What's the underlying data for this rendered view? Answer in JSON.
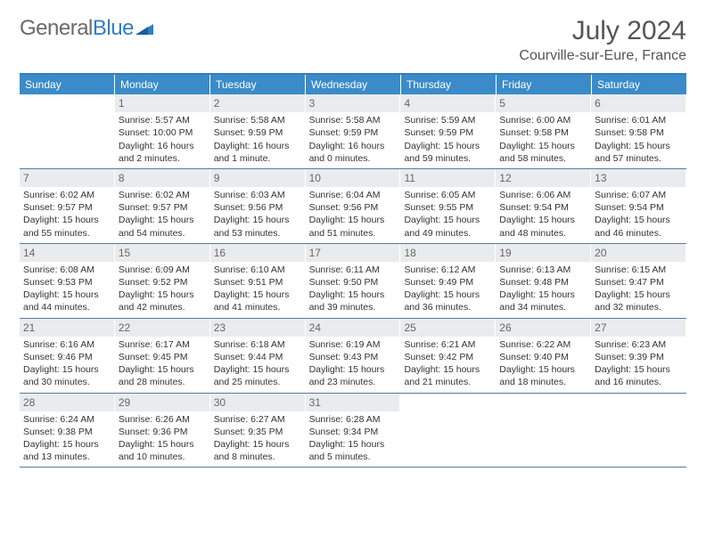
{
  "logo": {
    "part1": "General",
    "part2": "Blue"
  },
  "title": "July 2024",
  "location": "Courville-sur-Eure, France",
  "colors": {
    "header_bg": "#3b8bc9",
    "header_border_top": "#2f7ec2",
    "row_border": "#5b7a9a",
    "daynum_bg": "#e9ecef",
    "text": "#333333",
    "logo_gray": "#6a6a6a",
    "logo_blue": "#2f7ec2"
  },
  "day_headers": [
    "Sunday",
    "Monday",
    "Tuesday",
    "Wednesday",
    "Thursday",
    "Friday",
    "Saturday"
  ],
  "weeks": [
    [
      {
        "num": "",
        "sunrise": "",
        "sunset": "",
        "daylight": ""
      },
      {
        "num": "1",
        "sunrise": "Sunrise: 5:57 AM",
        "sunset": "Sunset: 10:00 PM",
        "daylight": "Daylight: 16 hours and 2 minutes."
      },
      {
        "num": "2",
        "sunrise": "Sunrise: 5:58 AM",
        "sunset": "Sunset: 9:59 PM",
        "daylight": "Daylight: 16 hours and 1 minute."
      },
      {
        "num": "3",
        "sunrise": "Sunrise: 5:58 AM",
        "sunset": "Sunset: 9:59 PM",
        "daylight": "Daylight: 16 hours and 0 minutes."
      },
      {
        "num": "4",
        "sunrise": "Sunrise: 5:59 AM",
        "sunset": "Sunset: 9:59 PM",
        "daylight": "Daylight: 15 hours and 59 minutes."
      },
      {
        "num": "5",
        "sunrise": "Sunrise: 6:00 AM",
        "sunset": "Sunset: 9:58 PM",
        "daylight": "Daylight: 15 hours and 58 minutes."
      },
      {
        "num": "6",
        "sunrise": "Sunrise: 6:01 AM",
        "sunset": "Sunset: 9:58 PM",
        "daylight": "Daylight: 15 hours and 57 minutes."
      }
    ],
    [
      {
        "num": "7",
        "sunrise": "Sunrise: 6:02 AM",
        "sunset": "Sunset: 9:57 PM",
        "daylight": "Daylight: 15 hours and 55 minutes."
      },
      {
        "num": "8",
        "sunrise": "Sunrise: 6:02 AM",
        "sunset": "Sunset: 9:57 PM",
        "daylight": "Daylight: 15 hours and 54 minutes."
      },
      {
        "num": "9",
        "sunrise": "Sunrise: 6:03 AM",
        "sunset": "Sunset: 9:56 PM",
        "daylight": "Daylight: 15 hours and 53 minutes."
      },
      {
        "num": "10",
        "sunrise": "Sunrise: 6:04 AM",
        "sunset": "Sunset: 9:56 PM",
        "daylight": "Daylight: 15 hours and 51 minutes."
      },
      {
        "num": "11",
        "sunrise": "Sunrise: 6:05 AM",
        "sunset": "Sunset: 9:55 PM",
        "daylight": "Daylight: 15 hours and 49 minutes."
      },
      {
        "num": "12",
        "sunrise": "Sunrise: 6:06 AM",
        "sunset": "Sunset: 9:54 PM",
        "daylight": "Daylight: 15 hours and 48 minutes."
      },
      {
        "num": "13",
        "sunrise": "Sunrise: 6:07 AM",
        "sunset": "Sunset: 9:54 PM",
        "daylight": "Daylight: 15 hours and 46 minutes."
      }
    ],
    [
      {
        "num": "14",
        "sunrise": "Sunrise: 6:08 AM",
        "sunset": "Sunset: 9:53 PM",
        "daylight": "Daylight: 15 hours and 44 minutes."
      },
      {
        "num": "15",
        "sunrise": "Sunrise: 6:09 AM",
        "sunset": "Sunset: 9:52 PM",
        "daylight": "Daylight: 15 hours and 42 minutes."
      },
      {
        "num": "16",
        "sunrise": "Sunrise: 6:10 AM",
        "sunset": "Sunset: 9:51 PM",
        "daylight": "Daylight: 15 hours and 41 minutes."
      },
      {
        "num": "17",
        "sunrise": "Sunrise: 6:11 AM",
        "sunset": "Sunset: 9:50 PM",
        "daylight": "Daylight: 15 hours and 39 minutes."
      },
      {
        "num": "18",
        "sunrise": "Sunrise: 6:12 AM",
        "sunset": "Sunset: 9:49 PM",
        "daylight": "Daylight: 15 hours and 36 minutes."
      },
      {
        "num": "19",
        "sunrise": "Sunrise: 6:13 AM",
        "sunset": "Sunset: 9:48 PM",
        "daylight": "Daylight: 15 hours and 34 minutes."
      },
      {
        "num": "20",
        "sunrise": "Sunrise: 6:15 AM",
        "sunset": "Sunset: 9:47 PM",
        "daylight": "Daylight: 15 hours and 32 minutes."
      }
    ],
    [
      {
        "num": "21",
        "sunrise": "Sunrise: 6:16 AM",
        "sunset": "Sunset: 9:46 PM",
        "daylight": "Daylight: 15 hours and 30 minutes."
      },
      {
        "num": "22",
        "sunrise": "Sunrise: 6:17 AM",
        "sunset": "Sunset: 9:45 PM",
        "daylight": "Daylight: 15 hours and 28 minutes."
      },
      {
        "num": "23",
        "sunrise": "Sunrise: 6:18 AM",
        "sunset": "Sunset: 9:44 PM",
        "daylight": "Daylight: 15 hours and 25 minutes."
      },
      {
        "num": "24",
        "sunrise": "Sunrise: 6:19 AM",
        "sunset": "Sunset: 9:43 PM",
        "daylight": "Daylight: 15 hours and 23 minutes."
      },
      {
        "num": "25",
        "sunrise": "Sunrise: 6:21 AM",
        "sunset": "Sunset: 9:42 PM",
        "daylight": "Daylight: 15 hours and 21 minutes."
      },
      {
        "num": "26",
        "sunrise": "Sunrise: 6:22 AM",
        "sunset": "Sunset: 9:40 PM",
        "daylight": "Daylight: 15 hours and 18 minutes."
      },
      {
        "num": "27",
        "sunrise": "Sunrise: 6:23 AM",
        "sunset": "Sunset: 9:39 PM",
        "daylight": "Daylight: 15 hours and 16 minutes."
      }
    ],
    [
      {
        "num": "28",
        "sunrise": "Sunrise: 6:24 AM",
        "sunset": "Sunset: 9:38 PM",
        "daylight": "Daylight: 15 hours and 13 minutes."
      },
      {
        "num": "29",
        "sunrise": "Sunrise: 6:26 AM",
        "sunset": "Sunset: 9:36 PM",
        "daylight": "Daylight: 15 hours and 10 minutes."
      },
      {
        "num": "30",
        "sunrise": "Sunrise: 6:27 AM",
        "sunset": "Sunset: 9:35 PM",
        "daylight": "Daylight: 15 hours and 8 minutes."
      },
      {
        "num": "31",
        "sunrise": "Sunrise: 6:28 AM",
        "sunset": "Sunset: 9:34 PM",
        "daylight": "Daylight: 15 hours and 5 minutes."
      },
      {
        "num": "",
        "sunrise": "",
        "sunset": "",
        "daylight": ""
      },
      {
        "num": "",
        "sunrise": "",
        "sunset": "",
        "daylight": ""
      },
      {
        "num": "",
        "sunrise": "",
        "sunset": "",
        "daylight": ""
      }
    ]
  ]
}
